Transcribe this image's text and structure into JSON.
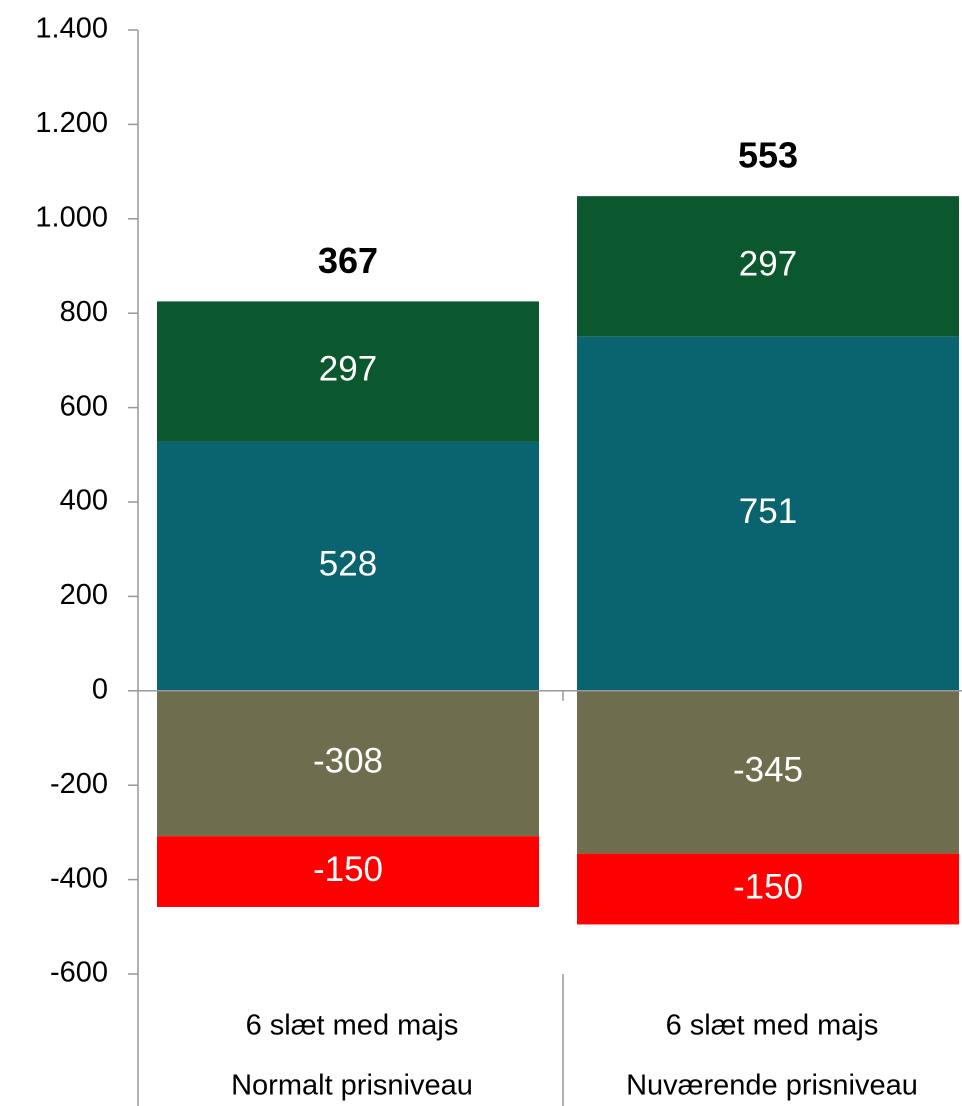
{
  "chart_data": {
    "type": "stacked_bar",
    "categories": [
      [
        "6 slæt med majs",
        "Normalt prisniveau"
      ],
      [
        "6 slæt med majs",
        "Nuværende prisniveau"
      ]
    ],
    "series": [
      {
        "color": "#0a6470",
        "values": [
          528,
          751
        ]
      },
      {
        "color": "#0b582e",
        "values": [
          297,
          297
        ]
      },
      {
        "color": "#6e6d4d",
        "values": [
          -308,
          -345
        ]
      },
      {
        "color": "#ff0000",
        "values": [
          -150,
          -150
        ]
      }
    ],
    "totals": [
      367,
      553
    ],
    "ylim": [
      -600,
      1400
    ],
    "yticks": [
      -600,
      -400,
      -200,
      0,
      200,
      400,
      600,
      800,
      {
        "value": 1000,
        "label": "1.000"
      },
      {
        "value": 1200,
        "label": "1.200"
      },
      {
        "value": 1400,
        "label": "1.400"
      }
    ]
  }
}
